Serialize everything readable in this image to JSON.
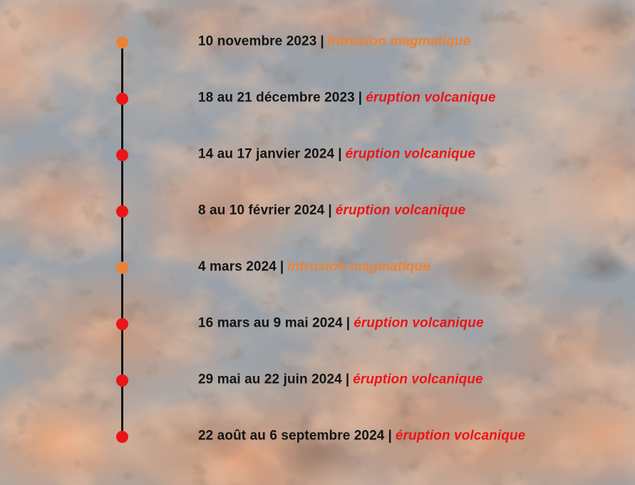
{
  "background": {
    "base_color": "#9aa1a8",
    "lava_orange": "#e08a5c",
    "lava_bright": "#f0a676",
    "lava_dark": "#40322a",
    "description": "lava flow photo seen through gray volcanic haze"
  },
  "timeline": {
    "separator": "|",
    "line_color": "#121212",
    "date_color": "#141414",
    "colors": {
      "intrusion": "#ea8238",
      "eruption": "#ea1518"
    },
    "events": [
      {
        "date": "10 novembre 2023",
        "label": "intrusion magmatique",
        "type": "intrusion"
      },
      {
        "date": "18 au 21 décembre 2023",
        "label": "éruption volcanique",
        "type": "eruption"
      },
      {
        "date": "14 au 17 janvier 2024",
        "label": "éruption volcanique",
        "type": "eruption"
      },
      {
        "date": "8 au 10 février 2024",
        "label": "éruption volcanique",
        "type": "eruption"
      },
      {
        "date": "4 mars 2024",
        "label": "intrusion magmatique",
        "type": "intrusion"
      },
      {
        "date": "16 mars au 9 mai 2024",
        "label": "éruption volcanique",
        "type": "eruption"
      },
      {
        "date": "29 mai au 22 juin 2024",
        "label": "éruption volcanique",
        "type": "eruption"
      },
      {
        "date": "22 août au 6 septembre 2024",
        "label": "éruption volcanique",
        "type": "eruption"
      }
    ]
  }
}
